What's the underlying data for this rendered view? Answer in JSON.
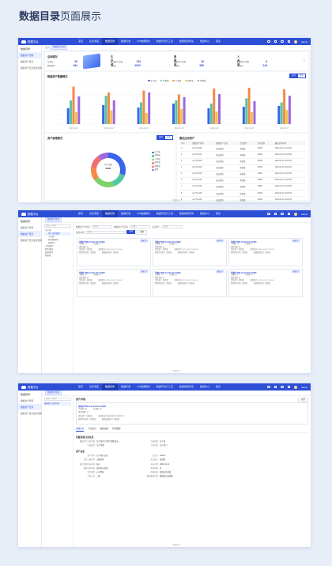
{
  "page_title": {
    "prefix": "数据目录",
    "suffix": "页面展示"
  },
  "topbar": {
    "logo": "数据平台",
    "nav": [
      "首页",
      "任务调度",
      "数据目录",
      "数据标准",
      "API数据服务",
      "数据开发与工具",
      "数据权限申请",
      "数据中心",
      "更多"
    ],
    "active_index": 2,
    "user": "Admin"
  },
  "sidebar": {
    "title": "数据目录",
    "items": [
      "数据资产管理",
      "数据资产目录",
      "数据资产目录发布管理"
    ]
  },
  "footer": "数据中心",
  "screen1": {
    "crumb_label": "目录",
    "crumb_tag": "数据资产目录",
    "overview": {
      "title": "总体情况",
      "rows": [
        {
          "k": "总指标",
          "v": "95"
        },
        {
          "k": "数据资产",
          "v": "454"
        }
      ]
    },
    "stats": [
      {
        "title": "生产域",
        "rows": [
          {
            "k": "数据资产总数",
            "v": "154"
          },
          {
            "k": "总指标",
            "v": "4520"
          }
        ]
      },
      {
        "title": "营销域",
        "rows": [
          {
            "k": "数据资产总数",
            "v": "26"
          },
          {
            "k": "总指标",
            "v": "989"
          }
        ]
      },
      {
        "title": "人资域",
        "rows": [
          {
            "k": "数据资产总数",
            "v": "9"
          },
          {
            "k": "总指标",
            "v": "244"
          }
        ]
      }
    ],
    "bar_section_title": "数据资产数量情况",
    "bar_buttons": [
      "按月",
      "按年"
    ],
    "pie_section_title": "资产新增情况",
    "pie_buttons": [
      "按月",
      "按年"
    ],
    "pie_center": {
      "label": "资产总量",
      "value": "9860"
    },
    "table_section_title": "最近应用资产",
    "table": {
      "headers": [
        "序号",
        "数据资产名称",
        "数据资产分类",
        "负责部门",
        "访问次数",
        "最近使用时间"
      ],
      "rows": [
        [
          "1",
          "sjx-751-000",
          "宿迁营销",
          "营销部",
          "10000",
          "2022-04-11 15:20:00"
        ],
        [
          "2",
          "sjx-751-000",
          "宿迁营销",
          "营销部",
          "10000",
          "2022-04-11 15:20:00"
        ],
        [
          "3",
          "sjx-751-000",
          "宿迁营销",
          "营销部",
          "10000",
          "2022-04-11 15:20:00"
        ],
        [
          "4",
          "sjx-751-000",
          "宿迁营销",
          "营销部",
          "10000",
          "2022-04-11 15:20:00"
        ],
        [
          "5",
          "sjx-751-000",
          "宿迁营销",
          "营销部",
          "10000",
          "2022-04-11 15:20:00"
        ],
        [
          "6",
          "sjx-751-000",
          "宿迁营销",
          "营销部",
          "10000",
          "2022-04-11 15:20:00"
        ],
        [
          "7",
          "sjx-751-000",
          "宿迁营销",
          "营销部",
          "10000",
          "2022-04-11 15:20:00"
        ],
        [
          "8",
          "sjx-751-000",
          "宿迁营销",
          "营销部",
          "10000",
          "2022-04-11 15:20:00"
        ],
        [
          "9",
          "sjx-751-000",
          "宿迁营销",
          "营销部",
          "10000",
          "2022-04-11 15:20:00"
        ]
      ]
    }
  },
  "chart_data": [
    {
      "type": "bar",
      "categories": [
        "2022-04-01",
        "2022-04-02",
        "2022-04-03",
        "2022-04-04",
        "2022-04-05",
        "2022-04-06",
        "2022-04-07"
      ],
      "ylim": [
        0,
        100
      ],
      "series": [
        {
          "name": "生产域",
          "color": "#3a64ec",
          "values": [
            40,
            48,
            42,
            52,
            40,
            44,
            46
          ]
        },
        {
          "name": "营销域",
          "color": "#53c9a0",
          "values": [
            60,
            72,
            55,
            60,
            52,
            65,
            55
          ]
        },
        {
          "name": "人资域",
          "color": "#f5894a",
          "values": [
            95,
            80,
            85,
            75,
            90,
            92,
            88
          ]
        },
        {
          "name": "财务域",
          "color": "#f2c14e",
          "values": [
            30,
            35,
            28,
            38,
            32,
            30,
            36
          ]
        },
        {
          "name": "物资域",
          "color": "#9b6ae0",
          "values": [
            70,
            60,
            80,
            68,
            76,
            58,
            72
          ]
        }
      ]
    },
    {
      "type": "pie",
      "categories": [
        "生产域",
        "营销域",
        "人资域",
        "财务域",
        "物资域",
        "其他"
      ],
      "values": [
        30,
        15,
        20,
        12,
        13,
        10
      ],
      "colors": [
        "#3a64ec",
        "#53c9a0",
        "#7fd16a",
        "#f5894a",
        "#f26d6d",
        "#9b6ae0"
      ]
    }
  ],
  "screen2": {
    "filters": {
      "labels": [
        "数据资产中文名",
        "数据资产英文名",
        "负责部门",
        "更新时间"
      ],
      "placeholder": "请输入",
      "query": "查询",
      "reset": "重置"
    },
    "tree": {
      "search": "请输入关键字",
      "nodes": [
        "生产域",
        "资产分类管理",
        "人员(3)",
        "供电管理(6)",
        "营销(3)",
        "人资域(3)",
        "财务域(3)",
        "营销域(3)",
        "物资域"
      ]
    },
    "cards": [
      {
        "name": "用电户DW-CU-ELEC-USER",
        "badge": "数据资产",
        "l1": [
          "字段数",
          "10",
          "记录数",
          "10"
        ],
        "l2": [
          "更新周期",
          "日"
        ],
        "l3": [
          "责任部门",
          "营销部",
          "更新时间",
          "2022-04-11 15:20:00"
        ],
        "l4": [
          "管理责任部门",
          "营销部",
          "数据使用部门",
          "营销部"
        ]
      },
      {
        "name": "用电户DW-CU-ELEC-USER",
        "badge": "数据资产",
        "l1": [
          "字段数",
          "10",
          "记录数",
          "10"
        ],
        "l2": [
          "更新周期",
          "日"
        ],
        "l3": [
          "责任部门",
          "营销部",
          "更新时间",
          "2022-04-11 15:20:00"
        ],
        "l4": [
          "管理责任部门",
          "营销部",
          "数据使用部门",
          "营销部"
        ]
      },
      {
        "name": "用电户DW-CU-ELEC-USER",
        "badge": "数据资产",
        "l1": [
          "字段数",
          "10",
          "记录数",
          "10"
        ],
        "l2": [
          "更新周期",
          "日"
        ],
        "l3": [
          "责任部门",
          "营销部",
          "更新时间",
          "2022-04-11 15:20:00"
        ],
        "l4": [
          "管理责任部门",
          "营销部",
          "数据使用部门",
          "营销部"
        ]
      },
      {
        "name": "用电户DW-CU-ELEC-USER",
        "badge": "数据资产",
        "l1": [
          "字段数",
          "10",
          "记录数",
          "10"
        ],
        "l2": [
          "更新周期",
          "日"
        ],
        "l3": [
          "责任部门",
          "营销部",
          "更新时间",
          "2022-04-11 15:20:00"
        ],
        "l4": [
          "管理责任部门",
          "营销部",
          "数据使用部门",
          "营销部"
        ]
      },
      {
        "name": "用电户DW-CU-ELEC-USER",
        "badge": "数据资产",
        "l1": [
          "字段数",
          "10",
          "记录数",
          "10"
        ],
        "l2": [
          "更新周期",
          "日"
        ],
        "l3": [
          "责任部门",
          "营销部",
          "更新时间",
          "2022-04-11 15:20:00"
        ],
        "l4": [
          "管理责任部门",
          "营销部",
          "数据使用部门",
          "营销部"
        ]
      },
      {
        "name": "用电户DW-CU-ELEC-USER",
        "badge": "数据资产",
        "l1": [
          "字段数",
          "10",
          "记录数",
          "10"
        ],
        "l2": [
          "更新周期",
          "日"
        ],
        "l3": [
          "责任部门",
          "营销部",
          "更新时间",
          "2022-04-11 15:20:00"
        ],
        "l4": [
          "管理责任部门",
          "营销部",
          "数据使用部门",
          "营销部"
        ]
      }
    ]
  },
  "screen3": {
    "left_item": "数据资产目录详情",
    "crumb_tag": "数据资产目录",
    "detail_title": "资产详情",
    "back": "返回",
    "asset_name": "用电户DW-CU-ELEC-USER",
    "meta1": [
      "字段数",
      "10",
      "记录数",
      "10"
    ],
    "meta2": [
      "更新周期",
      "日"
    ],
    "meta3": [
      "责任部门",
      "营销部",
      "更新时间",
      "2022-04-11 15:20:00"
    ],
    "meta4": [
      "管理责任部门",
      "营销部",
      "数据使用部门",
      "营销部"
    ],
    "tabs": [
      "基础信息",
      "字段信息",
      "数据血缘",
      "样例数据"
    ],
    "section1": "所属资源目录信息",
    "s1_rows": [
      [
        "数据资产目录名称",
        "生产域/生产资产管理/变电",
        "目录编码",
        "生产域"
      ],
      [
        "目录类别",
        "生产资源",
        "上级目录",
        "生产部门"
      ]
    ],
    "section2": "资产信息",
    "s2_rows": [
      [
        "资产名称",
        "生产域中文名",
        "英文名",
        "station"
      ],
      [
        "负责主题名称",
        "主题名称",
        "负责部门",
        "营销部"
      ],
      [
        "统计周期发布时间",
        "每日",
        "发布日期",
        "2022-04-11"
      ],
      [
        "数据来源系统",
        "营销业务系统",
        "更新频率",
        "日"
      ],
      [
        "资产类型",
        "公共代码",
        "所属系统",
        "营销业务系统"
      ],
      [
        "共享方式",
        "二级",
        "数据更新时间",
        "数据库自动更新"
      ]
    ]
  }
}
